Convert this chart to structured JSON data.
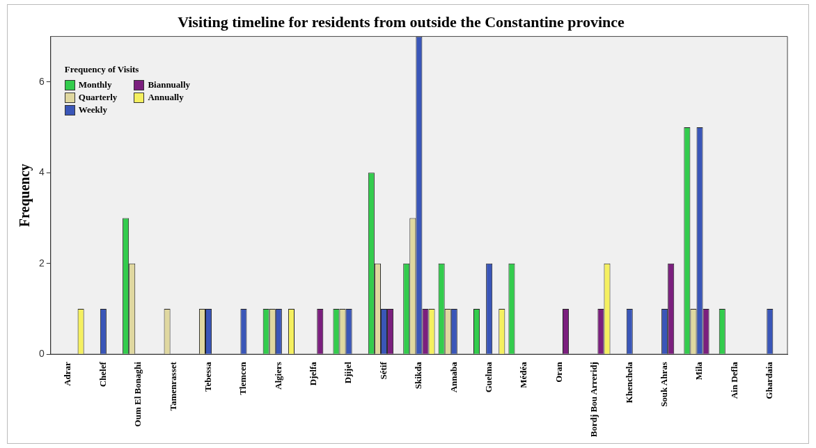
{
  "chart_data": {
    "type": "bar",
    "title": "Visiting timeline for residents from outside the Constantine province",
    "ylabel": "Frequency",
    "legend_title": "Frequency of Visits",
    "legend": "top left",
    "grid": false,
    "categories": [
      "Adrar",
      "Chelef",
      "Oum El Bonaghi",
      "Tamenrasset",
      "Tebessa",
      "Tlemcen",
      "Algiers",
      "Djelfa",
      "Djijel",
      "Sétif",
      "Skikda",
      "Annaba",
      "Guelma",
      "Médéa",
      "Oran",
      "Bordj Bou Arreridj",
      "Khenchela",
      "Souk Ahras",
      "Mila",
      "Ain Defla",
      "Ghardaia"
    ],
    "series": [
      {
        "name": "Monthly",
        "color": "#33cc4d",
        "values": [
          0,
          0,
          3,
          0,
          0,
          0,
          1,
          0,
          1,
          4,
          2,
          2,
          1,
          2,
          0,
          0,
          0,
          0,
          5,
          1,
          0
        ]
      },
      {
        "name": "Quarterly",
        "color": "#e0d8a0",
        "values": [
          0,
          0,
          2,
          1,
          1,
          0,
          1,
          0,
          1,
          2,
          3,
          1,
          0,
          0,
          0,
          0,
          0,
          0,
          1,
          0,
          0
        ]
      },
      {
        "name": "Weekly",
        "color": "#3a56b8",
        "values": [
          0,
          1,
          0,
          0,
          1,
          1,
          1,
          0,
          1,
          1,
          7,
          1,
          2,
          0,
          0,
          0,
          1,
          1,
          5,
          0,
          1
        ]
      },
      {
        "name": "Biannually",
        "color": "#7b1f7e",
        "values": [
          0,
          0,
          0,
          0,
          0,
          0,
          0,
          1,
          0,
          1,
          1,
          0,
          0,
          0,
          1,
          1,
          0,
          2,
          1,
          0,
          0
        ]
      },
      {
        "name": "Annually",
        "color": "#f5f060",
        "values": [
          1,
          0,
          0,
          0,
          0,
          0,
          1,
          0,
          0,
          0,
          1,
          0,
          1,
          0,
          0,
          2,
          0,
          0,
          0,
          0,
          0
        ]
      }
    ],
    "ylim": [
      0,
      7
    ],
    "yticks": [
      0,
      2,
      4,
      6
    ]
  }
}
